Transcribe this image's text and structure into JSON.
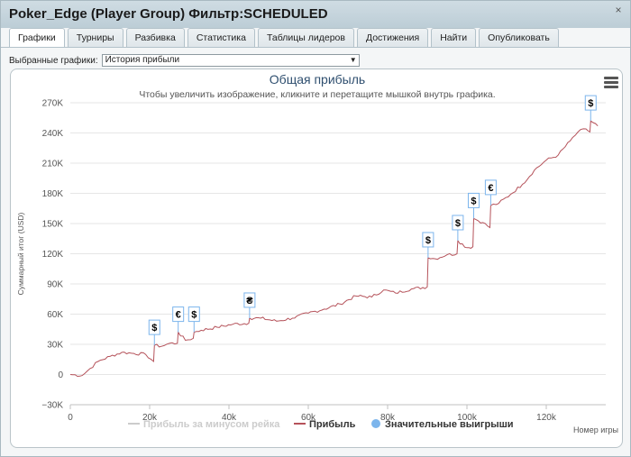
{
  "window": {
    "title": "Poker_Edge (Player Group) Фильтр:SCHEDULED",
    "close_glyph": "×"
  },
  "tabs": [
    {
      "label": "Графики",
      "active": true
    },
    {
      "label": "Турниры"
    },
    {
      "label": "Разбивка"
    },
    {
      "label": "Статистика"
    },
    {
      "label": "Таблицы лидеров"
    },
    {
      "label": "Достижения"
    },
    {
      "label": "Найти"
    },
    {
      "label": "Опубликовать"
    }
  ],
  "selector": {
    "label": "Выбранные графики:",
    "value": "История прибыли"
  },
  "chart_data": {
    "type": "line",
    "title": "Общая прибыль",
    "subtitle": "Чтобы увеличить изображение, кликните и перетащите мышкой внутрь графика.",
    "xlabel": "Номер игры",
    "ylabel": "Суммарный итог (USD)",
    "xlim": [
      0,
      135000
    ],
    "ylim": [
      -30000,
      270000
    ],
    "x_ticks": [
      0,
      20000,
      40000,
      60000,
      80000,
      100000,
      120000
    ],
    "x_tick_labels": [
      "0",
      "20k",
      "40k",
      "60k",
      "80k",
      "100k",
      "120k"
    ],
    "y_ticks": [
      -30000,
      0,
      30000,
      60000,
      90000,
      120000,
      150000,
      180000,
      210000,
      240000,
      270000
    ],
    "y_tick_labels": [
      "−30K",
      "0",
      "30K",
      "60K",
      "90K",
      "120K",
      "150K",
      "180K",
      "210K",
      "240K",
      "270K"
    ],
    "grid": "horizontal",
    "series": [
      {
        "name": "Прибыль за минусом рейка",
        "color": "#cccccc",
        "visible": false,
        "values": []
      },
      {
        "name": "Прибыль",
        "color": "#b5525a",
        "x": [
          0,
          3000,
          5000,
          7000,
          10000,
          13000,
          16000,
          19000,
          21000,
          21200,
          23000,
          25000,
          27000,
          27200,
          29000,
          31000,
          31200,
          33000,
          37000,
          41000,
          45000,
          45200,
          48000,
          52000,
          56000,
          60000,
          64000,
          68000,
          72000,
          76000,
          79000,
          82000,
          86000,
          90000,
          90200,
          92000,
          95000,
          97500,
          97700,
          100000,
          101500,
          101700,
          104000,
          105800,
          106000,
          108000,
          111000,
          114000,
          117000,
          120000,
          123000,
          126000,
          128000,
          130000,
          131000,
          131200,
          133000
        ],
        "values": [
          0,
          -1000,
          6000,
          13000,
          18000,
          22000,
          21000,
          20000,
          13000,
          29000,
          28000,
          31000,
          31000,
          42000,
          34000,
          36000,
          42000,
          44000,
          47000,
          50000,
          51000,
          56000,
          56000,
          53000,
          56000,
          61000,
          65000,
          70000,
          78000,
          77000,
          84000,
          81000,
          85000,
          87000,
          116000,
          115000,
          119000,
          120000,
          133000,
          126000,
          127000,
          155000,
          151000,
          146000,
          168000,
          170000,
          179000,
          189000,
          203000,
          213000,
          218000,
          232000,
          241000,
          244000,
          241000,
          252000,
          247000
        ]
      }
    ],
    "significant_wins_legend": "Значительные выигрыши",
    "significant_wins": [
      {
        "x": 21200,
        "y": 29000,
        "symbol": "$"
      },
      {
        "x": 27200,
        "y": 42000,
        "symbol": "€"
      },
      {
        "x": 31200,
        "y": 42000,
        "symbol": "$"
      },
      {
        "x": 45200,
        "y": 56000,
        "symbol": "₴"
      },
      {
        "x": 90200,
        "y": 116000,
        "symbol": "$"
      },
      {
        "x": 97700,
        "y": 133000,
        "symbol": "$"
      },
      {
        "x": 101700,
        "y": 155000,
        "symbol": "$"
      },
      {
        "x": 106000,
        "y": 168000,
        "symbol": "€"
      },
      {
        "x": 131200,
        "y": 252000,
        "symbol": "$"
      }
    ],
    "legend_placement": "bottom-center"
  },
  "colors": {
    "profit_line": "#b5525a",
    "rake_line": "#cccccc",
    "wins_marker": "#7cb5ec",
    "flag_border": "#7cb5ec",
    "title": "#2f4f6f"
  },
  "icons": {
    "menu": "hamburger-menu-icon",
    "close": "close-icon"
  }
}
